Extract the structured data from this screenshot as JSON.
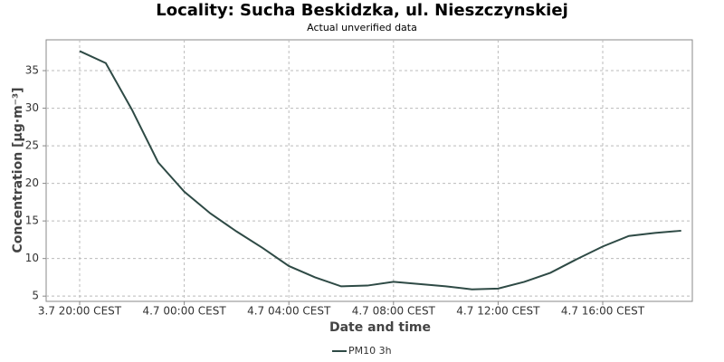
{
  "chart_data": {
    "type": "line",
    "title": "Locality: Sucha Beskidzka, ul. Nieszczynskiej",
    "subtitle": "Actual unverified data",
    "x_label": "Date and time",
    "y_label": "Concentration [µg·m⁻³]",
    "categories": [
      "3.7 20:00 CEST",
      null,
      null,
      null,
      "4.7 00:00 CEST",
      null,
      null,
      null,
      "4.7 04:00 CEST",
      null,
      null,
      null,
      "4.7 08:00 CEST",
      null,
      null,
      null,
      "4.7 12:00 CEST",
      null,
      null,
      null,
      "4.7 16:00 CEST",
      null,
      null,
      null
    ],
    "series": [
      {
        "name": "PM10 3h",
        "color": "#2e4a45",
        "values": [
          37.6,
          36.0,
          29.8,
          22.8,
          18.9,
          16.0,
          13.6,
          11.4,
          9.0,
          7.5,
          6.3,
          6.4,
          6.9,
          6.6,
          6.3,
          5.9,
          6.0,
          6.9,
          8.1,
          9.9,
          11.6,
          13.0,
          13.4,
          13.7
        ]
      }
    ],
    "ylim": [
      4.3,
      39.1
    ],
    "yticks": [
      5,
      10,
      15,
      20,
      25,
      30,
      35
    ],
    "grid": true,
    "legend": "bottom"
  }
}
